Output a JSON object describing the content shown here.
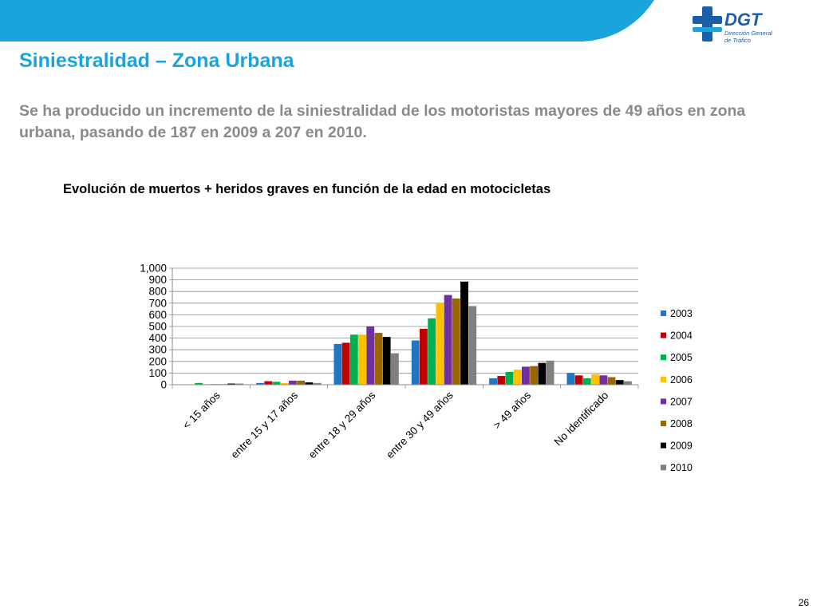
{
  "slide": {
    "title": "Siniestralidad – Zona Urbana",
    "subtitle": "Se ha producido un incremento de la siniestralidad de los motoristas mayores de 49 años en zona urbana, pasando de 187 en 2009 a 207 en 2010.",
    "page_number": "26"
  },
  "logo": {
    "brand": "DGT",
    "line1": "Dirección General",
    "line2": "de Tráfico"
  },
  "colors": {
    "title": "#1aa3dc",
    "band": "#1aa3dc",
    "subtitle": "#8a8a8a"
  },
  "chart_data": {
    "type": "bar",
    "title": "Evolución de muertos + heridos graves en función de la edad en motocicletas",
    "xlabel": "",
    "ylabel": "",
    "categories": [
      "< 15 años",
      "entre 15 y 17 años",
      "entre 18 y 29 años",
      "entre 30 y 49 años",
      "> 49 años",
      "No identificado"
    ],
    "ylim": [
      0,
      1000
    ],
    "yticks": [
      0,
      100,
      200,
      300,
      400,
      500,
      600,
      700,
      800,
      900,
      1000
    ],
    "ytick_labels": [
      "0",
      "100",
      "200",
      "300",
      "400",
      "500",
      "600",
      "700",
      "800",
      "900",
      "1,000"
    ],
    "grid": true,
    "legend": "right",
    "series": [
      {
        "name": "2003",
        "color": "#1f77c4",
        "values": [
          3,
          15,
          350,
          380,
          55,
          100
        ]
      },
      {
        "name": "2004",
        "color": "#c00000",
        "values": [
          3,
          30,
          360,
          480,
          75,
          80
        ]
      },
      {
        "name": "2005",
        "color": "#00b050",
        "values": [
          15,
          25,
          430,
          570,
          110,
          55
        ]
      },
      {
        "name": "2006",
        "color": "#ffc000",
        "values": [
          5,
          15,
          430,
          705,
          130,
          90
        ]
      },
      {
        "name": "2007",
        "color": "#7030a0",
        "values": [
          5,
          35,
          500,
          770,
          155,
          80
        ]
      },
      {
        "name": "2008",
        "color": "#996600",
        "values": [
          5,
          35,
          445,
          740,
          160,
          65
        ]
      },
      {
        "name": "2009",
        "color": "#000000",
        "values": [
          10,
          20,
          410,
          885,
          187,
          40
        ]
      },
      {
        "name": "2010",
        "color": "#808080",
        "values": [
          10,
          15,
          270,
          675,
          207,
          30
        ]
      }
    ]
  }
}
